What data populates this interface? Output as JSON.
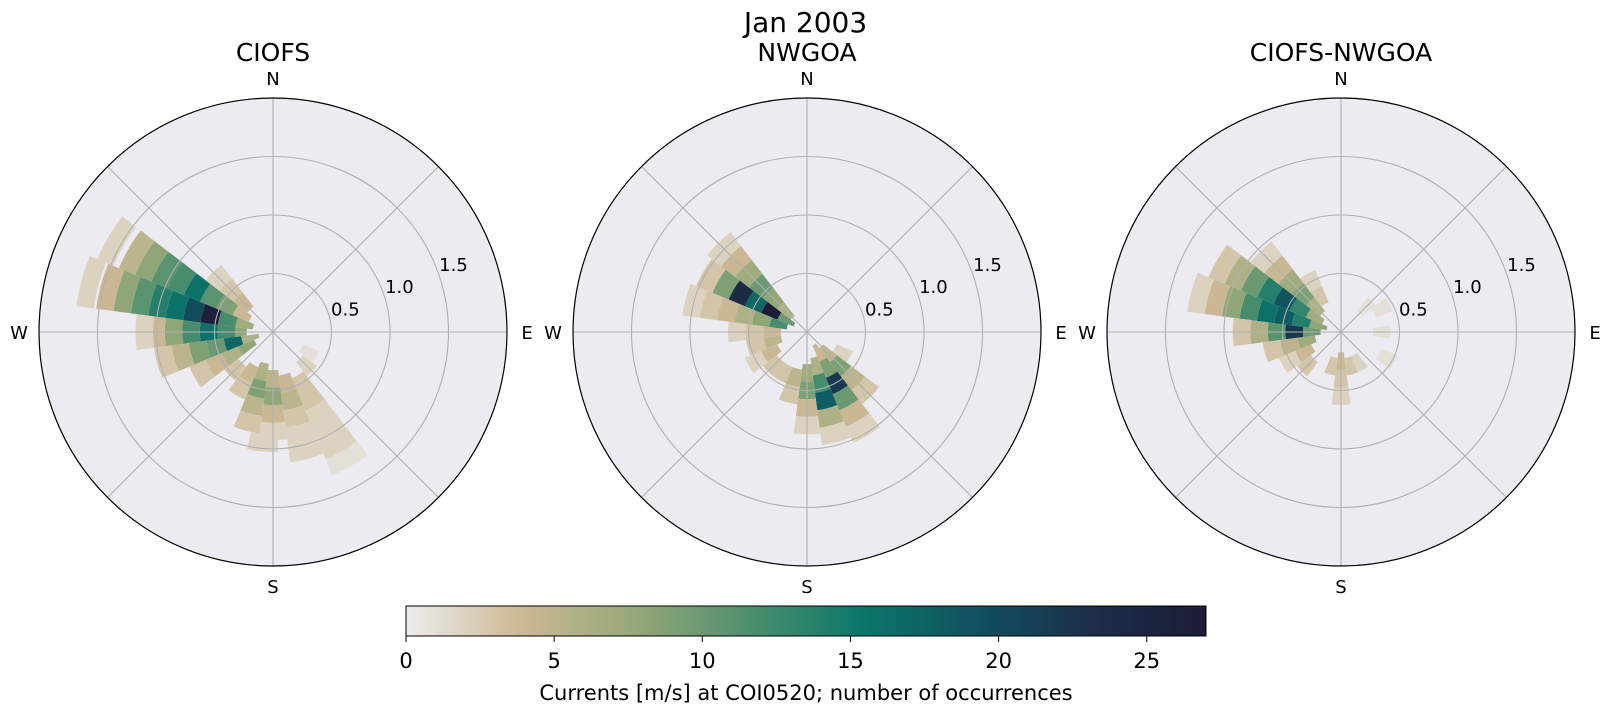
{
  "figure": {
    "suptitle": "Jan 2003",
    "colorbar_label": "Currents [m/s] at COI0520; number of occurrences",
    "colorbar_ticks": [
      "0",
      "5",
      "10",
      "15",
      "20",
      "25"
    ],
    "colorbar_range": [
      0,
      27
    ],
    "colormap_stops": [
      "#ededee",
      "#ccb995",
      "#96a879",
      "#4e8f6e",
      "#0b7669",
      "#10515f",
      "#1c2e4a",
      "#1d1b38"
    ]
  },
  "chart_data": [
    {
      "type": "heatmap",
      "projection": "polar",
      "title": "CIOFS",
      "direction_labels": [
        "N",
        "E",
        "S",
        "W"
      ],
      "radial_ticks": [
        "0.5",
        "1.0",
        "1.5"
      ],
      "radial_range": [
        0,
        2.0
      ],
      "grid": true,
      "bins": [
        {
          "dir": 270,
          "r": 0.3,
          "v": 8
        },
        {
          "dir": 270,
          "r": 0.4,
          "v": 12
        },
        {
          "dir": 270,
          "r": 0.55,
          "v": 16
        },
        {
          "dir": 270,
          "r": 0.7,
          "v": 12
        },
        {
          "dir": 270,
          "r": 0.85,
          "v": 8
        },
        {
          "dir": 270,
          "r": 1.0,
          "v": 4
        },
        {
          "dir": 270,
          "r": 1.1,
          "v": 2
        },
        {
          "dir": 285,
          "r": 0.25,
          "v": 7
        },
        {
          "dir": 285,
          "r": 0.4,
          "v": 12
        },
        {
          "dir": 285,
          "r": 0.55,
          "v": 26
        },
        {
          "dir": 285,
          "r": 0.7,
          "v": 20
        },
        {
          "dir": 285,
          "r": 0.85,
          "v": 16
        },
        {
          "dir": 285,
          "r": 1.0,
          "v": 14
        },
        {
          "dir": 285,
          "r": 1.15,
          "v": 11
        },
        {
          "dir": 285,
          "r": 1.3,
          "v": 8
        },
        {
          "dir": 285,
          "r": 1.45,
          "v": 4
        },
        {
          "dir": 285,
          "r": 1.62,
          "v": 2
        },
        {
          "dir": 300,
          "r": 0.3,
          "v": 4
        },
        {
          "dir": 300,
          "r": 0.45,
          "v": 9
        },
        {
          "dir": 300,
          "r": 0.6,
          "v": 11
        },
        {
          "dir": 300,
          "r": 0.75,
          "v": 16
        },
        {
          "dir": 300,
          "r": 0.9,
          "v": 12
        },
        {
          "dir": 300,
          "r": 1.05,
          "v": 11
        },
        {
          "dir": 300,
          "r": 1.2,
          "v": 8
        },
        {
          "dir": 300,
          "r": 1.35,
          "v": 5
        },
        {
          "dir": 300,
          "r": 1.55,
          "v": 2
        },
        {
          "dir": 255,
          "r": 0.2,
          "v": 6
        },
        {
          "dir": 255,
          "r": 0.35,
          "v": 17
        },
        {
          "dir": 255,
          "r": 0.5,
          "v": 10
        },
        {
          "dir": 255,
          "r": 0.65,
          "v": 9
        },
        {
          "dir": 255,
          "r": 0.8,
          "v": 5
        },
        {
          "dir": 255,
          "r": 0.95,
          "v": 3
        },
        {
          "dir": 240,
          "r": 0.25,
          "v": 8
        },
        {
          "dir": 240,
          "r": 0.4,
          "v": 6
        },
        {
          "dir": 240,
          "r": 0.55,
          "v": 4
        },
        {
          "dir": 240,
          "r": 0.7,
          "v": 3
        },
        {
          "dir": 315,
          "r": 0.35,
          "v": 4
        },
        {
          "dir": 315,
          "r": 0.5,
          "v": 3
        },
        {
          "dir": 315,
          "r": 0.65,
          "v": 2
        },
        {
          "dir": 195,
          "r": 0.35,
          "v": 6
        },
        {
          "dir": 195,
          "r": 0.5,
          "v": 9
        },
        {
          "dir": 195,
          "r": 0.65,
          "v": 5
        },
        {
          "dir": 195,
          "r": 0.8,
          "v": 3
        },
        {
          "dir": 180,
          "r": 0.4,
          "v": 5
        },
        {
          "dir": 180,
          "r": 0.55,
          "v": 8
        },
        {
          "dir": 180,
          "r": 0.7,
          "v": 4
        },
        {
          "dir": 180,
          "r": 0.85,
          "v": 2
        },
        {
          "dir": 165,
          "r": 0.45,
          "v": 4
        },
        {
          "dir": 165,
          "r": 0.6,
          "v": 5
        },
        {
          "dir": 165,
          "r": 0.75,
          "v": 3
        },
        {
          "dir": 165,
          "r": 0.9,
          "v": 2
        },
        {
          "dir": 165,
          "r": 1.05,
          "v": 2
        },
        {
          "dir": 150,
          "r": 0.5,
          "v": 3
        },
        {
          "dir": 150,
          "r": 0.65,
          "v": 3
        },
        {
          "dir": 150,
          "r": 0.8,
          "v": 2
        },
        {
          "dir": 150,
          "r": 0.95,
          "v": 2
        },
        {
          "dir": 150,
          "r": 1.1,
          "v": 2
        },
        {
          "dir": 150,
          "r": 1.25,
          "v": 1
        },
        {
          "dir": 210,
          "r": 0.4,
          "v": 4
        },
        {
          "dir": 210,
          "r": 0.55,
          "v": 3
        },
        {
          "dir": 225,
          "r": 0.45,
          "v": 3
        },
        {
          "dir": 135,
          "r": 0.4,
          "v": 2
        },
        {
          "dir": 120,
          "r": 0.35,
          "v": 1
        },
        {
          "dir": 185,
          "r": 0.95,
          "v": 2
        }
      ]
    },
    {
      "type": "heatmap",
      "projection": "polar",
      "title": "NWGOA",
      "direction_labels": [
        "N",
        "E",
        "S",
        "W"
      ],
      "radial_ticks": [
        "0.5",
        "1.0",
        "1.5"
      ],
      "radial_range": [
        0,
        2.0
      ],
      "grid": true,
      "bins": [
        {
          "dir": 300,
          "r": 0.2,
          "v": 10
        },
        {
          "dir": 300,
          "r": 0.35,
          "v": 27
        },
        {
          "dir": 300,
          "r": 0.5,
          "v": 17
        },
        {
          "dir": 300,
          "r": 0.65,
          "v": 24
        },
        {
          "dir": 300,
          "r": 0.8,
          "v": 9
        },
        {
          "dir": 300,
          "r": 0.95,
          "v": 3
        },
        {
          "dir": 285,
          "r": 0.25,
          "v": 12
        },
        {
          "dir": 285,
          "r": 0.4,
          "v": 8
        },
        {
          "dir": 285,
          "r": 0.55,
          "v": 6
        },
        {
          "dir": 285,
          "r": 0.7,
          "v": 4
        },
        {
          "dir": 285,
          "r": 0.85,
          "v": 3
        },
        {
          "dir": 285,
          "r": 1.0,
          "v": 2
        },
        {
          "dir": 315,
          "r": 0.25,
          "v": 6
        },
        {
          "dir": 315,
          "r": 0.4,
          "v": 8
        },
        {
          "dir": 315,
          "r": 0.55,
          "v": 10
        },
        {
          "dir": 315,
          "r": 0.7,
          "v": 7
        },
        {
          "dir": 315,
          "r": 0.85,
          "v": 4
        },
        {
          "dir": 315,
          "r": 1.0,
          "v": 2
        },
        {
          "dir": 270,
          "r": 0.3,
          "v": 4
        },
        {
          "dir": 270,
          "r": 0.45,
          "v": 3
        },
        {
          "dir": 270,
          "r": 0.6,
          "v": 2
        },
        {
          "dir": 255,
          "r": 0.3,
          "v": 5
        },
        {
          "dir": 255,
          "r": 0.45,
          "v": 3
        },
        {
          "dir": 240,
          "r": 0.35,
          "v": 4
        },
        {
          "dir": 240,
          "r": 0.5,
          "v": 2
        },
        {
          "dir": 225,
          "r": 0.4,
          "v": 3
        },
        {
          "dir": 150,
          "r": 0.2,
          "v": 4
        },
        {
          "dir": 150,
          "r": 0.35,
          "v": 9
        },
        {
          "dir": 150,
          "r": 0.5,
          "v": 22
        },
        {
          "dir": 150,
          "r": 0.65,
          "v": 10
        },
        {
          "dir": 150,
          "r": 0.8,
          "v": 4
        },
        {
          "dir": 150,
          "r": 0.95,
          "v": 2
        },
        {
          "dir": 165,
          "r": 0.3,
          "v": 6
        },
        {
          "dir": 165,
          "r": 0.45,
          "v": 12
        },
        {
          "dir": 165,
          "r": 0.6,
          "v": 18
        },
        {
          "dir": 165,
          "r": 0.75,
          "v": 6
        },
        {
          "dir": 165,
          "r": 0.9,
          "v": 2
        },
        {
          "dir": 135,
          "r": 0.25,
          "v": 5
        },
        {
          "dir": 135,
          "r": 0.4,
          "v": 9
        },
        {
          "dir": 135,
          "r": 0.55,
          "v": 5
        },
        {
          "dir": 135,
          "r": 0.7,
          "v": 3
        },
        {
          "dir": 180,
          "r": 0.35,
          "v": 7
        },
        {
          "dir": 180,
          "r": 0.5,
          "v": 9
        },
        {
          "dir": 180,
          "r": 0.65,
          "v": 4
        },
        {
          "dir": 180,
          "r": 0.8,
          "v": 2
        },
        {
          "dir": 195,
          "r": 0.4,
          "v": 5
        },
        {
          "dir": 195,
          "r": 0.55,
          "v": 3
        },
        {
          "dir": 210,
          "r": 0.4,
          "v": 3
        },
        {
          "dir": 120,
          "r": 0.35,
          "v": 2
        }
      ]
    },
    {
      "type": "heatmap",
      "projection": "polar",
      "title": "CIOFS-NWGOA",
      "direction_labels": [
        "N",
        "E",
        "S",
        "W"
      ],
      "radial_ticks": [
        "0.5",
        "1.0",
        "1.5"
      ],
      "radial_range": [
        0,
        2.0
      ],
      "grid": true,
      "bins": [
        {
          "dir": 285,
          "r": 0.2,
          "v": 8
        },
        {
          "dir": 285,
          "r": 0.35,
          "v": 14
        },
        {
          "dir": 285,
          "r": 0.5,
          "v": 18
        },
        {
          "dir": 285,
          "r": 0.65,
          "v": 16
        },
        {
          "dir": 285,
          "r": 0.8,
          "v": 12
        },
        {
          "dir": 285,
          "r": 0.95,
          "v": 8
        },
        {
          "dir": 285,
          "r": 1.1,
          "v": 4
        },
        {
          "dir": 285,
          "r": 1.25,
          "v": 2
        },
        {
          "dir": 300,
          "r": 0.25,
          "v": 7
        },
        {
          "dir": 300,
          "r": 0.4,
          "v": 13
        },
        {
          "dir": 300,
          "r": 0.55,
          "v": 19
        },
        {
          "dir": 300,
          "r": 0.7,
          "v": 14
        },
        {
          "dir": 300,
          "r": 0.85,
          "v": 10
        },
        {
          "dir": 300,
          "r": 1.0,
          "v": 6
        },
        {
          "dir": 300,
          "r": 1.15,
          "v": 3
        },
        {
          "dir": 270,
          "r": 0.25,
          "v": 10
        },
        {
          "dir": 270,
          "r": 0.4,
          "v": 22
        },
        {
          "dir": 270,
          "r": 0.55,
          "v": 11
        },
        {
          "dir": 270,
          "r": 0.7,
          "v": 6
        },
        {
          "dir": 270,
          "r": 0.85,
          "v": 3
        },
        {
          "dir": 315,
          "r": 0.3,
          "v": 6
        },
        {
          "dir": 315,
          "r": 0.45,
          "v": 9
        },
        {
          "dir": 315,
          "r": 0.6,
          "v": 7
        },
        {
          "dir": 315,
          "r": 0.75,
          "v": 4
        },
        {
          "dir": 315,
          "r": 0.9,
          "v": 2
        },
        {
          "dir": 255,
          "r": 0.3,
          "v": 7
        },
        {
          "dir": 255,
          "r": 0.45,
          "v": 5
        },
        {
          "dir": 255,
          "r": 0.6,
          "v": 3
        },
        {
          "dir": 330,
          "r": 0.35,
          "v": 3
        },
        {
          "dir": 330,
          "r": 0.5,
          "v": 2
        },
        {
          "dir": 240,
          "r": 0.35,
          "v": 4
        },
        {
          "dir": 240,
          "r": 0.5,
          "v": 2
        },
        {
          "dir": 225,
          "r": 0.4,
          "v": 3
        },
        {
          "dir": 180,
          "r": 0.25,
          "v": 4
        },
        {
          "dir": 180,
          "r": 0.4,
          "v": 3
        },
        {
          "dir": 180,
          "r": 0.55,
          "v": 2
        },
        {
          "dir": 165,
          "r": 0.3,
          "v": 3
        },
        {
          "dir": 195,
          "r": 0.3,
          "v": 3
        },
        {
          "dir": 150,
          "r": 0.3,
          "v": 2
        },
        {
          "dir": 90,
          "r": 0.35,
          "v": 1
        },
        {
          "dir": 60,
          "r": 0.4,
          "v": 1
        },
        {
          "dir": 120,
          "r": 0.45,
          "v": 1
        },
        {
          "dir": 45,
          "r": 0.3,
          "v": 1
        }
      ]
    }
  ]
}
